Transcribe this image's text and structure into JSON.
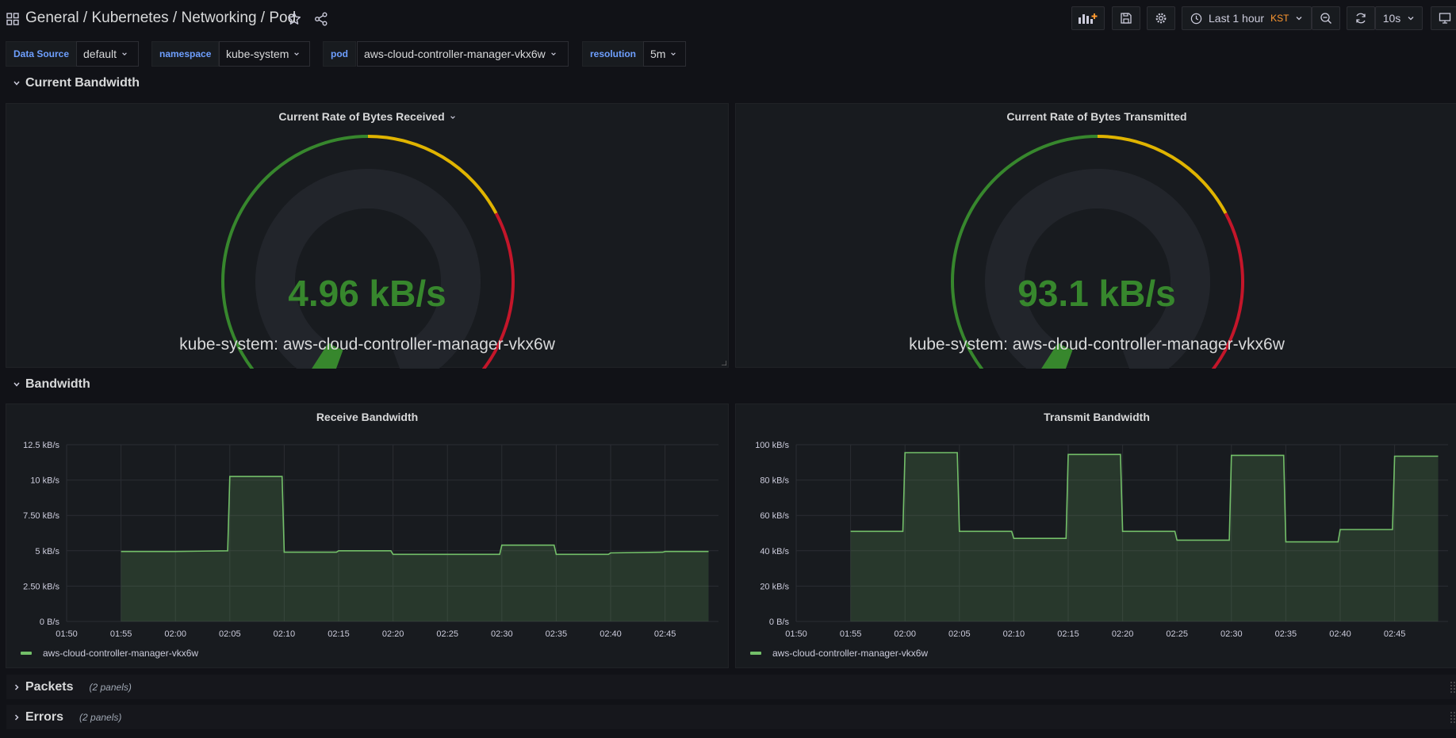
{
  "header": {
    "folder": "General",
    "separator": "/",
    "dashboard_title": "Kubernetes / Networking / Pod",
    "time_range": "Last 1 hour",
    "timezone": "KST",
    "refresh_interval": "10s"
  },
  "variables": [
    {
      "label": "Data Source",
      "value": "default"
    },
    {
      "label": "namespace",
      "value": "kube-system"
    },
    {
      "label": "pod",
      "value": "aws-cloud-controller-manager-vkx6w"
    },
    {
      "label": "resolution",
      "value": "5m"
    }
  ],
  "rows": {
    "current_bandwidth": "Current Bandwidth",
    "bandwidth": "Bandwidth",
    "packets": {
      "title": "Packets",
      "count": "(2 panels)"
    },
    "errors": {
      "title": "Errors",
      "count": "(2 panels)"
    }
  },
  "gauges": [
    {
      "title": "Current Rate of Bytes Received",
      "value": "4.96 kB/s",
      "series": "kube-system: aws-cloud-controller-manager-vkx6w",
      "fraction": 0.04
    },
    {
      "title": "Current Rate of Bytes Transmitted",
      "value": "93.1 kB/s",
      "series": "kube-system: aws-cloud-controller-manager-vkx6w",
      "fraction": 0.04
    }
  ],
  "colors": {
    "green": "#37872d",
    "yellow": "#e0b400",
    "red": "#c4162a",
    "series": "#73bf69",
    "accent": "#ff9830",
    "label_blue": "#6e9fff"
  },
  "chart_data": [
    {
      "type": "area",
      "title": "Receive Bandwidth",
      "x_ticks": [
        "01:50",
        "01:55",
        "02:00",
        "02:05",
        "02:10",
        "02:15",
        "02:20",
        "02:25",
        "02:30",
        "02:35",
        "02:40",
        "02:45"
      ],
      "y_ticks": [
        "0 B/s",
        "2.50 kB/s",
        "5 kB/s",
        "7.50 kB/s",
        "10 kB/s",
        "12.5 kB/s"
      ],
      "ylim": [
        0,
        12.5
      ],
      "y_unit": "kB/s",
      "series": [
        {
          "name": "aws-cloud-controller-manager-vkx6w",
          "points": [
            [
              "01:55",
              4.95
            ],
            [
              "02:00",
              4.95
            ],
            [
              "02:04.8",
              5.0
            ],
            [
              "02:05",
              10.25
            ],
            [
              "02:09.8",
              10.25
            ],
            [
              "02:10",
              4.9
            ],
            [
              "02:14.8",
              4.9
            ],
            [
              "02:15",
              5.0
            ],
            [
              "02:19.8",
              5.0
            ],
            [
              "02:20",
              4.75
            ],
            [
              "02:29.8",
              4.75
            ],
            [
              "02:30",
              5.4
            ],
            [
              "02:34.8",
              5.4
            ],
            [
              "02:35",
              4.75
            ],
            [
              "02:39.8",
              4.75
            ],
            [
              "02:40",
              4.85
            ],
            [
              "02:44.8",
              4.9
            ],
            [
              "02:45",
              4.95
            ],
            [
              "02:49",
              4.95
            ]
          ]
        }
      ]
    },
    {
      "type": "area",
      "title": "Transmit Bandwidth",
      "x_ticks": [
        "01:50",
        "01:55",
        "02:00",
        "02:05",
        "02:10",
        "02:15",
        "02:20",
        "02:25",
        "02:30",
        "02:35",
        "02:40",
        "02:45"
      ],
      "y_ticks": [
        "0 B/s",
        "20 kB/s",
        "40 kB/s",
        "60 kB/s",
        "80 kB/s",
        "100 kB/s"
      ],
      "ylim": [
        0,
        100
      ],
      "y_unit": "kB/s",
      "series": [
        {
          "name": "aws-cloud-controller-manager-vkx6w",
          "points": [
            [
              "01:55",
              51
            ],
            [
              "01:59.8",
              51
            ],
            [
              "02:00",
              95.5
            ],
            [
              "02:04.8",
              95.5
            ],
            [
              "02:05",
              51
            ],
            [
              "02:09.8",
              51
            ],
            [
              "02:10",
              47
            ],
            [
              "02:14.8",
              47
            ],
            [
              "02:15",
              94.5
            ],
            [
              "02:19.8",
              94.5
            ],
            [
              "02:20",
              51
            ],
            [
              "02:24.8",
              51
            ],
            [
              "02:25",
              46
            ],
            [
              "02:29.8",
              46
            ],
            [
              "02:30",
              94
            ],
            [
              "02:34.8",
              94
            ],
            [
              "02:35",
              45
            ],
            [
              "02:39.8",
              45
            ],
            [
              "02:40",
              52
            ],
            [
              "02:44.8",
              52
            ],
            [
              "02:45",
              93.5
            ],
            [
              "02:49",
              93.5
            ]
          ]
        }
      ]
    }
  ]
}
